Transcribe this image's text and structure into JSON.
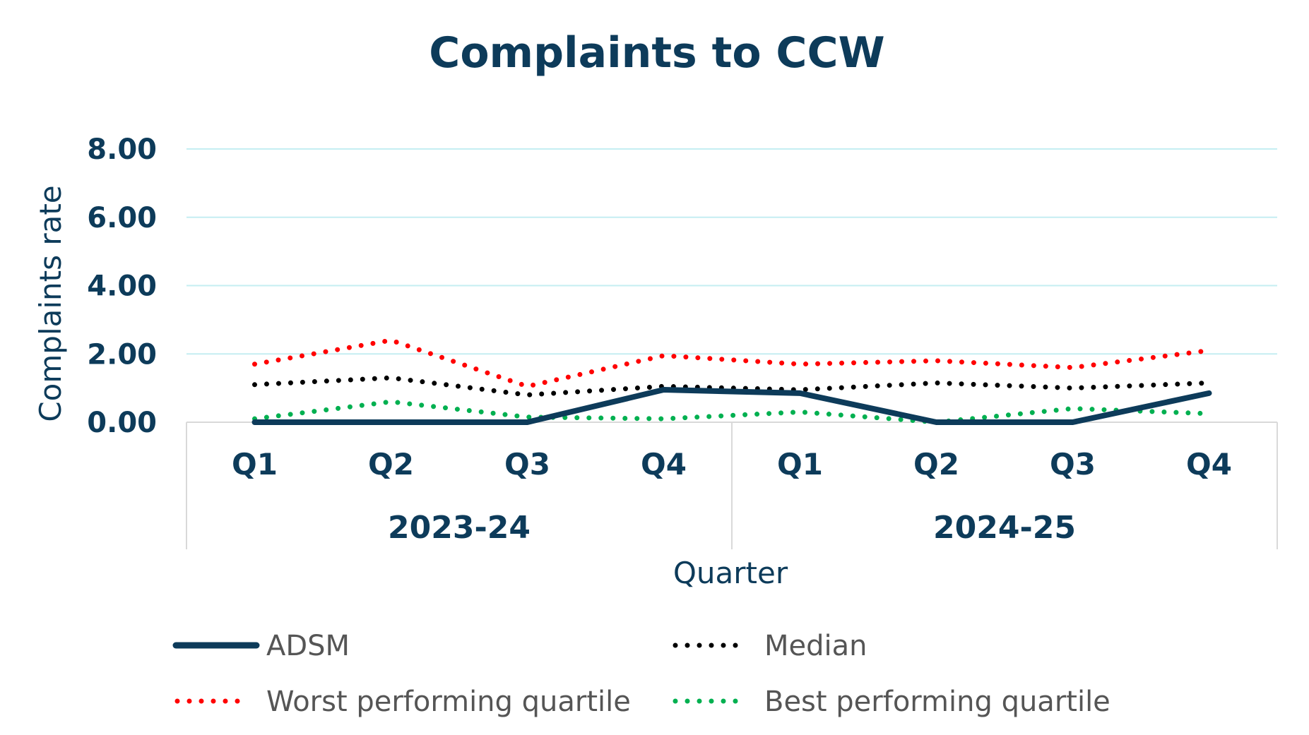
{
  "chart_data": {
    "type": "line",
    "title": "Complaints to CCW",
    "xlabel": "Quarter",
    "ylabel": "Complaints rate",
    "ylim": [
      0,
      8
    ],
    "yticks": [
      "0.00",
      "2.00",
      "4.00",
      "6.00",
      "8.00"
    ],
    "categories": [
      "Q1",
      "Q2",
      "Q3",
      "Q4",
      "Q1",
      "Q2",
      "Q3",
      "Q4"
    ],
    "groups": [
      {
        "label": "2023-24",
        "span": 4
      },
      {
        "label": "2024-25",
        "span": 4
      }
    ],
    "grid": true,
    "legend_position": "bottom",
    "series": [
      {
        "name": "ADSM",
        "style": "solid",
        "color": "#0d3b5a",
        "values": [
          0.0,
          0.0,
          0.0,
          0.95,
          0.85,
          0.0,
          0.0,
          0.85
        ]
      },
      {
        "name": "Median",
        "style": "dotted",
        "color": "#000000",
        "values": [
          1.1,
          1.3,
          0.8,
          1.05,
          0.95,
          1.15,
          1.0,
          1.15
        ]
      },
      {
        "name": "Worst performing quartile",
        "style": "dotted",
        "color": "#ff0000",
        "values": [
          1.7,
          2.4,
          1.05,
          1.95,
          1.7,
          1.8,
          1.6,
          2.1
        ]
      },
      {
        "name": "Best performing quartile",
        "style": "dotted",
        "color": "#00b050",
        "values": [
          0.1,
          0.6,
          0.15,
          0.1,
          0.3,
          0.0,
          0.4,
          0.25
        ]
      }
    ]
  }
}
